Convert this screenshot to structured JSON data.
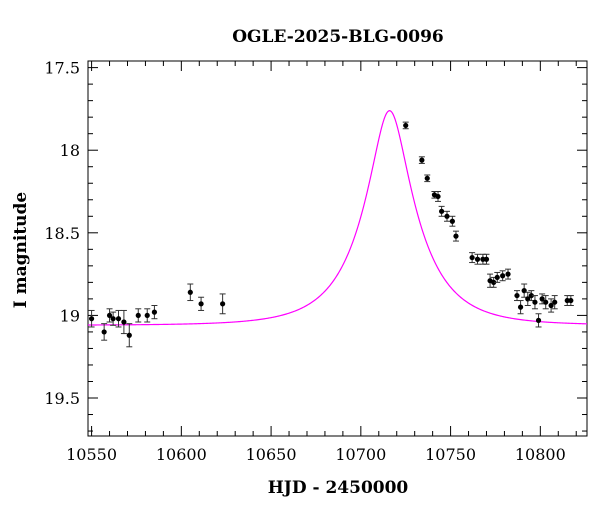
{
  "chart_data": {
    "type": "scatter",
    "title": "OGLE-2025-BLG-0096",
    "xlabel": "HJD - 2450000",
    "ylabel": "I magnitude",
    "xlim": [
      10548,
      10826
    ],
    "ylim": [
      19.73,
      17.46
    ],
    "y_inverted": true,
    "grid": false,
    "x_ticks": [
      10550,
      10600,
      10650,
      10700,
      10750,
      10800
    ],
    "x_tick_labels": [
      "10550",
      "10600",
      "10650",
      "10700",
      "10750",
      "10800"
    ],
    "y_ticks": [
      17.5,
      18,
      18.5,
      19,
      19.5
    ],
    "y_tick_labels": [
      "17.5",
      "18",
      "18.5",
      "19",
      "19.5"
    ],
    "model": {
      "color": "#ff00ff",
      "baseline_mag": 19.06,
      "t0": 10716,
      "peak_mag": 17.74,
      "tE": 30,
      "u0": 0.31
    },
    "series": [
      {
        "color": "#000000",
        "x": [
          10550,
          10557,
          10560,
          10562,
          10565,
          10568,
          10571,
          10576,
          10581,
          10585,
          10605,
          10611,
          10623,
          10725,
          10734,
          10737,
          10741,
          10743,
          10745,
          10748,
          10751,
          10753,
          10762,
          10765,
          10768,
          10770,
          10772,
          10774,
          10776,
          10779,
          10782,
          10787,
          10789,
          10791,
          10793,
          10795,
          10797,
          10799,
          10801,
          10803,
          10806,
          10808,
          10815,
          10817
        ],
        "y": [
          19.02,
          19.1,
          19.0,
          19.02,
          19.02,
          19.04,
          19.12,
          19.0,
          19.0,
          18.98,
          18.86,
          18.93,
          18.93,
          17.85,
          18.06,
          18.17,
          18.27,
          18.28,
          18.37,
          18.4,
          18.43,
          18.52,
          18.65,
          18.66,
          18.66,
          18.66,
          18.79,
          18.8,
          18.77,
          18.76,
          18.75,
          18.88,
          18.95,
          18.85,
          18.9,
          18.88,
          18.92,
          19.03,
          18.9,
          18.92,
          18.94,
          18.92,
          18.91,
          18.91
        ],
        "err": [
          0.05,
          0.05,
          0.04,
          0.04,
          0.05,
          0.07,
          0.07,
          0.04,
          0.04,
          0.04,
          0.05,
          0.04,
          0.06,
          0.02,
          0.02,
          0.02,
          0.02,
          0.03,
          0.03,
          0.03,
          0.03,
          0.03,
          0.03,
          0.03,
          0.03,
          0.03,
          0.04,
          0.03,
          0.03,
          0.03,
          0.03,
          0.03,
          0.04,
          0.04,
          0.04,
          0.03,
          0.04,
          0.04,
          0.03,
          0.04,
          0.04,
          0.04,
          0.03,
          0.03
        ]
      }
    ]
  }
}
